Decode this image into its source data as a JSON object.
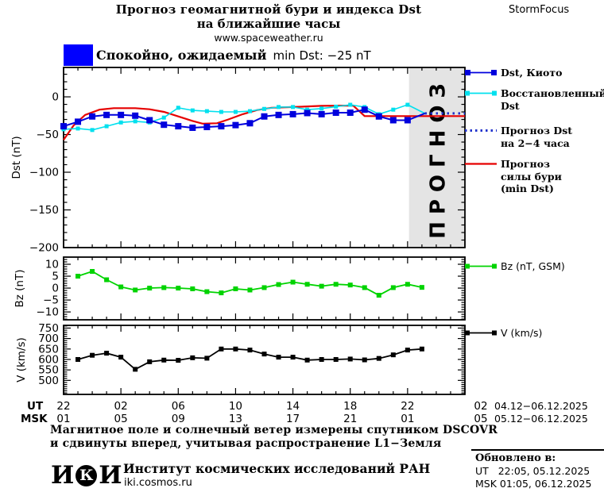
{
  "header": {
    "title_line1": "Прогноз геомагнитной бури и индекса Dst",
    "title_line2": "на ближайшие часы",
    "site_url": "www.spaceweather.ru",
    "brand": "StormFocus"
  },
  "status": {
    "level_text": "Спокойно, ожидаемый",
    "value_text": "min Dst: −25 nT",
    "swatch_color": "#0000ff"
  },
  "legend": {
    "dst_items": [
      {
        "swatch": "blue-line-squares",
        "color": "#0000dd",
        "lines": [
          "Dst, Киото"
        ]
      },
      {
        "swatch": "cyan-line-squares",
        "color": "#00e0ee",
        "lines": [
          "Восстановленный",
          "Dst"
        ]
      },
      {
        "swatch": "dotted-line",
        "color": "#2233cc",
        "lines": [
          "Прогноз Dst",
          "на 2−4 часа"
        ]
      },
      {
        "swatch": "solid-line",
        "color": "#e60000",
        "lines": [
          "Прогноз",
          "силы бури",
          "(min Dst)"
        ]
      }
    ],
    "bz_item": {
      "swatch": "green-line-squares",
      "color": "#00d300",
      "label": "Bz (nT, GSM)"
    },
    "v_item": {
      "swatch": "black-line-squares",
      "color": "#000000",
      "label": "V (km/s)"
    }
  },
  "xaxis": {
    "hours_total": 28,
    "major_every_hours": 4,
    "ut_label": "UT",
    "msk_label": "MSK",
    "ut_ticks": [
      "22",
      "02",
      "06",
      "10",
      "14",
      "18",
      "22",
      "02"
    ],
    "msk_ticks": [
      "01",
      "05",
      "09",
      "13",
      "17",
      "21",
      "01",
      "05"
    ],
    "ut_date_range": "04.12−06.12.2025",
    "msk_date_range": "05.12−06.12.2025"
  },
  "footer": {
    "note_line1": "Магнитное поле и солнечный ветер измерены спутником DSCOVR",
    "note_line2": "и сдвинуты вперед, учитывая распространение L1−Земля",
    "logo_i1": "И",
    "logo_k": "К",
    "logo_i2": "И",
    "org_name": "Институт космических исследований РАН",
    "org_site": "iki.cosmos.ru",
    "updated_label": "Обновлено в:",
    "updated_ut": "UT   22:05, 05.12.2025",
    "updated_msk": "MSK 01:05, 06.12.2025"
  },
  "chart_data": [
    {
      "type": "line",
      "ylabel": "Dst (nT)",
      "ylim": [
        -200,
        39
      ],
      "yticks": [
        0,
        -50,
        -100,
        -150,
        -200
      ],
      "x_unit": "hours from 22:00 UT 04.12",
      "forecast_region": {
        "start_hour": 24.1,
        "end_hour": 28,
        "label": "ПРОГНОЗ",
        "fill": "#e4e4e4",
        "label_color": "#c9c9c9"
      },
      "series": [
        {
          "name": "Прогноз силы бури (min Dst)",
          "color": "#e60000",
          "marker": 0,
          "width": 2.2,
          "x": [
            0,
            0.7,
            1.5,
            2.5,
            3.5,
            5,
            6,
            7,
            8,
            9,
            9.7,
            10.7,
            11.5,
            12.5,
            13.5,
            14.5,
            16,
            18,
            20.2,
            21,
            28
          ],
          "values": [
            -57,
            -38,
            -24,
            -17,
            -15,
            -15,
            -16.5,
            -20,
            -26,
            -32,
            -35.5,
            -35,
            -30,
            -23,
            -17.5,
            -14.5,
            -13.5,
            -12,
            -11.5,
            -25.5,
            -25.5
          ]
        },
        {
          "name": "Восстановленный Dst",
          "color": "#00e0ee",
          "marker": 5,
          "width": 1.6,
          "x": [
            0,
            1,
            2,
            3,
            4,
            5,
            6,
            7,
            8,
            9,
            10,
            11,
            12,
            13,
            14,
            15,
            16,
            17,
            18,
            19,
            20,
            21,
            22,
            23,
            24
          ],
          "values": [
            -43,
            -42,
            -44,
            -39,
            -34,
            -32.5,
            -34,
            -27.5,
            -14.5,
            -18,
            -19,
            -20,
            -20,
            -19,
            -16,
            -13.5,
            -13.5,
            -17,
            -15.5,
            -13,
            -10.5,
            -13.5,
            -23,
            -17,
            -10.5
          ],
          "tail": [
            [
              25.2,
              -22
            ]
          ]
        },
        {
          "name": "Dst, Киото",
          "color": "#0000dd",
          "marker": 8,
          "width": 2,
          "x": [
            0,
            1,
            2,
            3,
            4,
            5,
            6,
            7,
            8,
            9,
            10,
            11,
            12,
            13,
            14,
            15,
            16,
            17,
            18,
            19,
            20,
            21,
            22,
            23,
            24
          ],
          "values": [
            -39,
            -33,
            -26,
            -24,
            -24,
            -25,
            -31,
            -37,
            -39,
            -41,
            -40,
            -39,
            -37.5,
            -35,
            -26,
            -24,
            -23,
            -21.5,
            -23,
            -21,
            -21,
            -17,
            -26,
            -31,
            -31
          ],
          "tail": [
            [
              25.2,
              -22
            ]
          ]
        },
        {
          "name": "Прогноз Dst на 2−4 часа",
          "color": "#2233cc",
          "marker": 0,
          "width": 3,
          "dash": "2.5 4.5",
          "x": [
            25.2,
            28
          ],
          "values": [
            -22,
            -22
          ]
        }
      ]
    },
    {
      "type": "line",
      "ylabel": "Bz (nT)",
      "ylim": [
        -13.3,
        13
      ],
      "yticks": [
        10,
        5,
        0,
        -5,
        -10
      ],
      "series": [
        {
          "name": "Bz (nT, GSM)",
          "color": "#00d300",
          "marker": 6,
          "width": 1.8,
          "x": [
            1,
            2,
            3,
            4,
            5,
            6,
            7,
            8,
            9,
            10,
            11,
            12,
            13,
            14,
            15,
            16,
            17,
            18,
            19,
            20,
            21,
            22,
            23,
            24,
            25
          ],
          "values": [
            5,
            7,
            3.5,
            0.5,
            -0.8,
            0,
            0.2,
            0,
            -0.3,
            -1.5,
            -2,
            -0.3,
            -0.8,
            0.2,
            1.5,
            2.5,
            1.6,
            0.8,
            1.6,
            1.3,
            0.2,
            -3,
            0.2,
            1.6,
            0.3
          ]
        }
      ]
    },
    {
      "type": "line",
      "ylabel": "V (km/s)",
      "ylim": [
        433,
        763
      ],
      "yticks": [
        750,
        700,
        650,
        600,
        550,
        500
      ],
      "series": [
        {
          "name": "V (km/s)",
          "color": "#000000",
          "marker": 6,
          "width": 1.8,
          "x": [
            1,
            2,
            3,
            4,
            5,
            6,
            7,
            8,
            9,
            10,
            11,
            12,
            13,
            14,
            15,
            16,
            17,
            18,
            19,
            20,
            21,
            22,
            23,
            24,
            25
          ],
          "values": [
            600,
            620,
            630,
            611,
            553,
            589,
            597,
            596,
            608,
            606,
            650,
            650,
            645,
            626,
            611,
            611,
            597,
            600,
            600,
            602,
            598,
            605,
            622,
            645,
            650
          ]
        }
      ]
    }
  ]
}
